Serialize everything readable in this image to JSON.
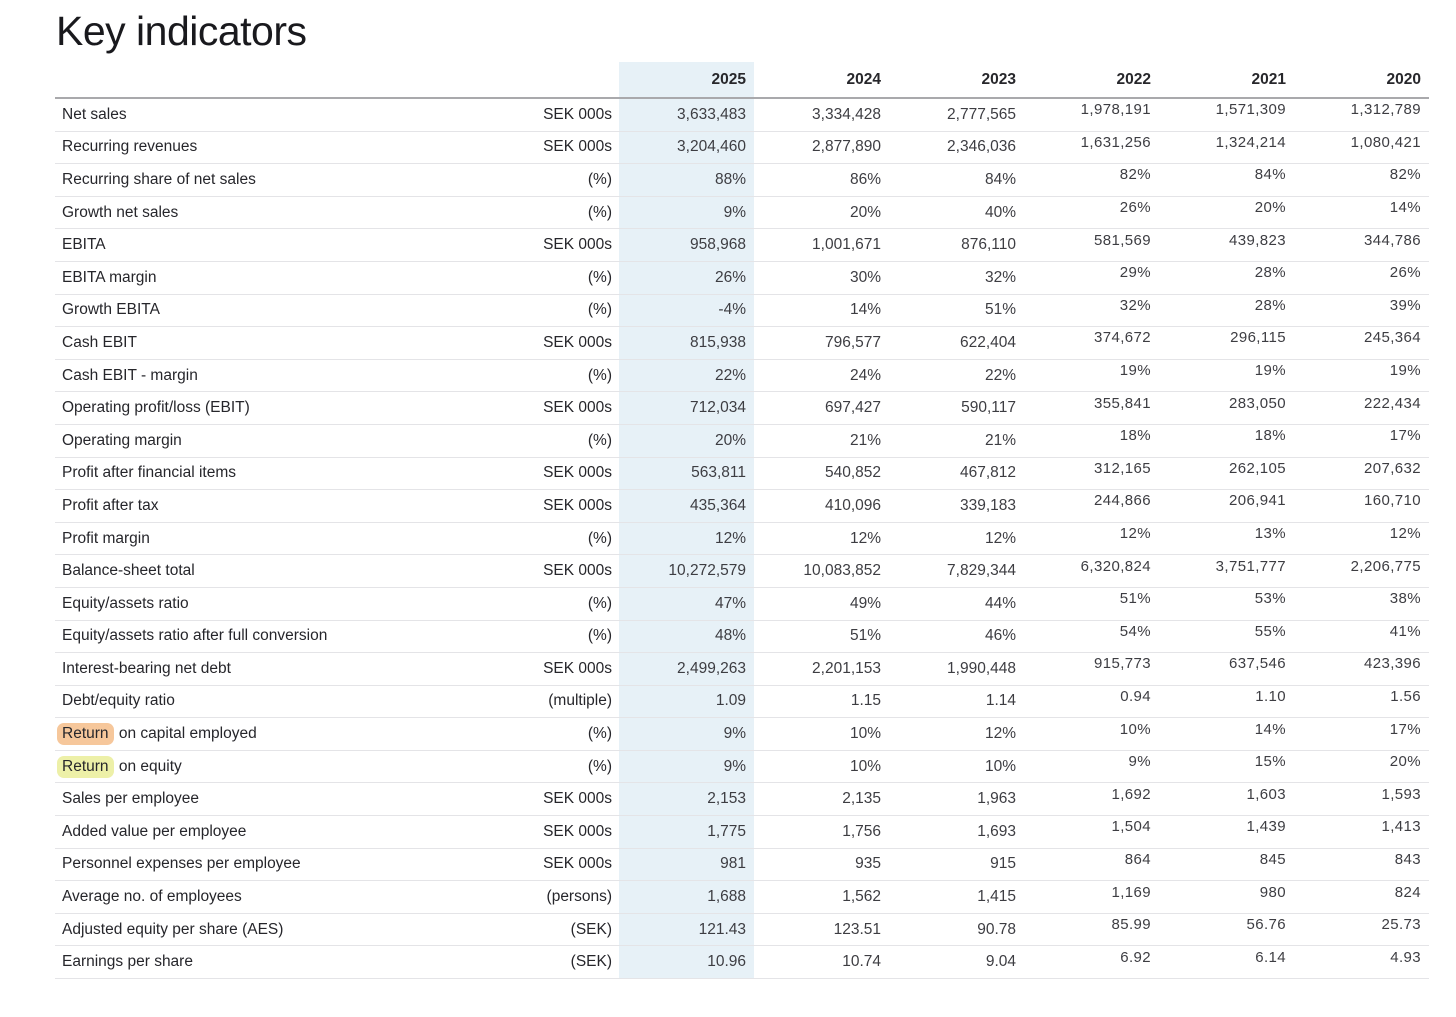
{
  "page": {
    "title": "Key indicators"
  },
  "colors": {
    "column_highlight": "#E7F1F7",
    "highlight_orange": "#F6C79B",
    "highlight_yellow": "#EDF0A8",
    "header_rule": "#A9A9AC",
    "row_rule": "#E4E4E7"
  },
  "table": {
    "years": [
      "2025",
      "2024",
      "2023",
      "2022",
      "2021",
      "2020"
    ],
    "highlighted_year": "2025",
    "rows": [
      {
        "label": "Net sales",
        "unit": "SEK 000s",
        "values": [
          "3,633,483",
          "3,334,428",
          "2,777,565",
          "1,978,191",
          "1,571,309",
          "1,312,789"
        ]
      },
      {
        "label": "Recurring revenues",
        "unit": "SEK 000s",
        "values": [
          "3,204,460",
          "2,877,890",
          "2,346,036",
          "1,631,256",
          "1,324,214",
          "1,080,421"
        ]
      },
      {
        "label": "Recurring share of net sales",
        "unit": "(%)",
        "values": [
          "88%",
          "86%",
          "84%",
          "82%",
          "84%",
          "82%"
        ]
      },
      {
        "label": "Growth net sales",
        "unit": "(%)",
        "values": [
          "9%",
          "20%",
          "40%",
          "26%",
          "20%",
          "14%"
        ]
      },
      {
        "label": "EBITA",
        "unit": "SEK 000s",
        "values": [
          "958,968",
          "1,001,671",
          "876,110",
          "581,569",
          "439,823",
          "344,786"
        ]
      },
      {
        "label": "EBITA margin",
        "unit": "(%)",
        "values": [
          "26%",
          "30%",
          "32%",
          "29%",
          "28%",
          "26%"
        ]
      },
      {
        "label": "Growth EBITA",
        "unit": "(%)",
        "values": [
          "-4%",
          "14%",
          "51%",
          "32%",
          "28%",
          "39%"
        ]
      },
      {
        "label": "Cash EBIT",
        "unit": "SEK 000s",
        "values": [
          "815,938",
          "796,577",
          "622,404",
          "374,672",
          "296,115",
          "245,364"
        ]
      },
      {
        "label": "Cash EBIT - margin",
        "unit": "(%)",
        "values": [
          "22%",
          "24%",
          "22%",
          "19%",
          "19%",
          "19%"
        ]
      },
      {
        "label": "Operating profit/loss (EBIT)",
        "unit": "SEK 000s",
        "values": [
          "712,034",
          "697,427",
          "590,117",
          "355,841",
          "283,050",
          "222,434"
        ]
      },
      {
        "label": "Operating margin",
        "unit": "(%)",
        "values": [
          "20%",
          "21%",
          "21%",
          "18%",
          "18%",
          "17%"
        ]
      },
      {
        "label": "Profit after financial items",
        "unit": "SEK 000s",
        "values": [
          "563,811",
          "540,852",
          "467,812",
          "312,165",
          "262,105",
          "207,632"
        ]
      },
      {
        "label": "Profit after tax",
        "unit": "SEK 000s",
        "values": [
          "435,364",
          "410,096",
          "339,183",
          "244,866",
          "206,941",
          "160,710"
        ]
      },
      {
        "label": "Profit margin",
        "unit": "(%)",
        "values": [
          "12%",
          "12%",
          "12%",
          "12%",
          "13%",
          "12%"
        ]
      },
      {
        "label": "Balance-sheet total",
        "unit": "SEK 000s",
        "values": [
          "10,272,579",
          "10,083,852",
          "7,829,344",
          "6,320,824",
          "3,751,777",
          "2,206,775"
        ]
      },
      {
        "label": "Equity/assets ratio",
        "unit": "(%)",
        "values": [
          "47%",
          "49%",
          "44%",
          "51%",
          "53%",
          "38%"
        ]
      },
      {
        "label": "Equity/assets ratio after full conversion",
        "unit": "(%)",
        "values": [
          "48%",
          "51%",
          "46%",
          "54%",
          "55%",
          "41%"
        ]
      },
      {
        "label": "Interest-bearing net debt",
        "unit": "SEK 000s",
        "values": [
          "2,499,263",
          "2,201,153",
          "1,990,448",
          "915,773",
          "637,546",
          "423,396"
        ]
      },
      {
        "label": "Debt/equity ratio",
        "unit": "(multiple)",
        "values": [
          "1.09",
          "1.15",
          "1.14",
          "0.94",
          "1.10",
          "1.56"
        ]
      },
      {
        "label_highlight": "Return",
        "label_rest": " on capital employed",
        "highlight": "highlight_orange",
        "unit": "(%)",
        "values": [
          "9%",
          "10%",
          "12%",
          "10%",
          "14%",
          "17%"
        ]
      },
      {
        "label_highlight": "Return",
        "label_rest": " on equity",
        "highlight": "highlight_yellow",
        "unit": "(%)",
        "values": [
          "9%",
          "10%",
          "10%",
          "9%",
          "15%",
          "20%"
        ]
      },
      {
        "label": "Sales per employee",
        "unit": "SEK 000s",
        "values": [
          "2,153",
          "2,135",
          "1,963",
          "1,692",
          "1,603",
          "1,593"
        ]
      },
      {
        "label": "Added value per employee",
        "unit": "SEK 000s",
        "values": [
          "1,775",
          "1,756",
          "1,693",
          "1,504",
          "1,439",
          "1,413"
        ]
      },
      {
        "label": "Personnel expenses per employee",
        "unit": "SEK 000s",
        "values": [
          "981",
          "935",
          "915",
          "864",
          "845",
          "843"
        ]
      },
      {
        "label": "Average no. of employees",
        "unit": "(persons)",
        "values": [
          "1,688",
          "1,562",
          "1,415",
          "1,169",
          "980",
          "824"
        ]
      },
      {
        "label": "Adjusted equity per share (AES)",
        "unit": "(SEK)",
        "values": [
          "121.43",
          "123.51",
          "90.78",
          "85.99",
          "56.76",
          "25.73"
        ]
      },
      {
        "label": "Earnings per share",
        "unit": "(SEK)",
        "values": [
          "10.96",
          "10.74",
          "9.04",
          "6.92",
          "6.14",
          "4.93"
        ]
      }
    ]
  }
}
